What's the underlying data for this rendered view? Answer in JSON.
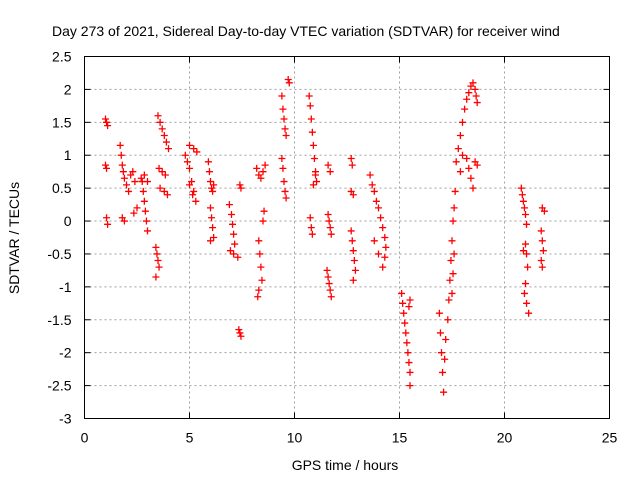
{
  "chart_data": {
    "type": "scatter",
    "title": "Day 273 of 2021, Sidereal Day-to-day VTEC variation (SDTVAR) for receiver wind",
    "xlabel": "GPS time / hours",
    "ylabel": "SDTVAR / TECUs",
    "xlim": [
      0,
      25
    ],
    "ylim": [
      -3,
      2.5
    ],
    "xticks": [
      0,
      5,
      10,
      15,
      20,
      25
    ],
    "yticks": [
      -3,
      -2.5,
      -2,
      -1.5,
      -1,
      -0.5,
      0,
      0.5,
      1,
      1.5,
      2,
      2.5
    ],
    "xtick_labels": [
      "0",
      "5",
      "10",
      "15",
      "20",
      "25"
    ],
    "ytick_labels": [
      "-3",
      "-2.5",
      "-2",
      "-1.5",
      "-1",
      "-0.5",
      "0",
      "0.5",
      "1",
      "1.5",
      "2",
      "2.5"
    ],
    "grid": true,
    "marker": "+",
    "color": "#ff0000",
    "series": [
      {
        "name": "SDTVAR",
        "points": [
          [
            1.0,
            1.55
          ],
          [
            1.05,
            1.5
          ],
          [
            1.1,
            1.45
          ],
          [
            1.0,
            0.85
          ],
          [
            1.05,
            0.8
          ],
          [
            1.05,
            0.05
          ],
          [
            1.1,
            -0.05
          ],
          [
            1.7,
            1.15
          ],
          [
            1.75,
            1.0
          ],
          [
            1.8,
            0.85
          ],
          [
            1.85,
            0.75
          ],
          [
            1.9,
            0.65
          ],
          [
            2.0,
            0.55
          ],
          [
            2.1,
            0.45
          ],
          [
            2.2,
            0.7
          ],
          [
            2.3,
            0.75
          ],
          [
            2.4,
            0.6
          ],
          [
            1.8,
            0.05
          ],
          [
            1.9,
            0.0
          ],
          [
            2.35,
            0.12
          ],
          [
            2.5,
            0.2
          ],
          [
            2.7,
            0.65
          ],
          [
            2.75,
            0.6
          ],
          [
            2.8,
            0.45
          ],
          [
            2.85,
            0.3
          ],
          [
            2.9,
            0.15
          ],
          [
            2.95,
            0.0
          ],
          [
            3.0,
            -0.15
          ],
          [
            2.85,
            0.7
          ],
          [
            3.0,
            0.6
          ],
          [
            3.4,
            -0.4
          ],
          [
            3.45,
            -0.5
          ],
          [
            3.5,
            -0.6
          ],
          [
            3.55,
            -0.7
          ],
          [
            3.4,
            -0.85
          ],
          [
            3.5,
            1.6
          ],
          [
            3.6,
            1.5
          ],
          [
            3.7,
            1.4
          ],
          [
            3.8,
            1.3
          ],
          [
            3.9,
            1.2
          ],
          [
            4.0,
            1.1
          ],
          [
            3.55,
            0.8
          ],
          [
            3.7,
            0.75
          ],
          [
            3.85,
            0.7
          ],
          [
            3.6,
            0.5
          ],
          [
            3.8,
            0.45
          ],
          [
            3.95,
            0.4
          ],
          [
            4.8,
            1.0
          ],
          [
            4.9,
            0.9
          ],
          [
            5.0,
            0.8
          ],
          [
            5.1,
            0.6
          ],
          [
            5.2,
            0.45
          ],
          [
            5.3,
            0.3
          ],
          [
            5.0,
            1.15
          ],
          [
            5.2,
            1.1
          ],
          [
            5.35,
            1.05
          ],
          [
            5.0,
            0.55
          ],
          [
            5.15,
            0.4
          ],
          [
            5.9,
            0.9
          ],
          [
            5.95,
            0.75
          ],
          [
            6.0,
            0.6
          ],
          [
            6.05,
            0.5
          ],
          [
            6.1,
            0.45
          ],
          [
            6.15,
            0.55
          ],
          [
            6.0,
            0.2
          ],
          [
            6.05,
            0.05
          ],
          [
            6.1,
            -0.1
          ],
          [
            6.15,
            -0.25
          ],
          [
            6.0,
            -0.3
          ],
          [
            6.9,
            0.25
          ],
          [
            7.0,
            0.1
          ],
          [
            7.05,
            -0.05
          ],
          [
            7.1,
            -0.2
          ],
          [
            7.15,
            -0.35
          ],
          [
            7.1,
            -0.5
          ],
          [
            7.3,
            -0.55
          ],
          [
            6.95,
            -0.45
          ],
          [
            7.35,
            -1.65
          ],
          [
            7.4,
            -1.7
          ],
          [
            7.45,
            -1.75
          ],
          [
            7.4,
            0.55
          ],
          [
            7.45,
            0.5
          ],
          [
            8.2,
            0.8
          ],
          [
            8.3,
            0.7
          ],
          [
            8.4,
            0.65
          ],
          [
            8.5,
            0.75
          ],
          [
            8.6,
            0.85
          ],
          [
            8.3,
            -0.3
          ],
          [
            8.35,
            -0.5
          ],
          [
            8.4,
            -0.7
          ],
          [
            8.45,
            -0.9
          ],
          [
            8.3,
            -1.05
          ],
          [
            8.25,
            -1.15
          ],
          [
            8.5,
            0.0
          ],
          [
            8.55,
            0.15
          ],
          [
            9.4,
            1.9
          ],
          [
            9.45,
            1.7
          ],
          [
            9.5,
            1.55
          ],
          [
            9.55,
            1.4
          ],
          [
            9.6,
            1.3
          ],
          [
            9.4,
            0.95
          ],
          [
            9.45,
            0.8
          ],
          [
            9.5,
            0.6
          ],
          [
            9.55,
            0.45
          ],
          [
            9.6,
            0.35
          ],
          [
            9.7,
            2.15
          ],
          [
            9.75,
            2.1
          ],
          [
            10.7,
            1.9
          ],
          [
            10.75,
            1.75
          ],
          [
            10.8,
            1.55
          ],
          [
            10.85,
            1.35
          ],
          [
            10.9,
            1.15
          ],
          [
            10.95,
            0.95
          ],
          [
            11.0,
            0.75
          ],
          [
            11.05,
            0.6
          ],
          [
            10.75,
            0.05
          ],
          [
            10.8,
            -0.1
          ],
          [
            10.85,
            -0.2
          ],
          [
            10.9,
            0.55
          ],
          [
            11.0,
            0.7
          ],
          [
            11.6,
            0.85
          ],
          [
            11.7,
            0.75
          ],
          [
            11.6,
            0.1
          ],
          [
            11.65,
            0.0
          ],
          [
            11.7,
            -0.1
          ],
          [
            11.75,
            -0.2
          ],
          [
            11.55,
            -0.75
          ],
          [
            11.6,
            -0.85
          ],
          [
            11.65,
            -0.95
          ],
          [
            11.7,
            -1.05
          ],
          [
            11.75,
            -1.15
          ],
          [
            12.7,
            0.95
          ],
          [
            12.75,
            0.85
          ],
          [
            12.7,
            0.45
          ],
          [
            12.8,
            0.4
          ],
          [
            12.7,
            -0.15
          ],
          [
            12.75,
            -0.3
          ],
          [
            12.8,
            -0.45
          ],
          [
            12.85,
            -0.6
          ],
          [
            12.9,
            -0.75
          ],
          [
            12.8,
            -0.9
          ],
          [
            13.6,
            0.7
          ],
          [
            13.7,
            0.55
          ],
          [
            13.8,
            0.45
          ],
          [
            13.9,
            0.3
          ],
          [
            14.0,
            0.2
          ],
          [
            14.1,
            0.05
          ],
          [
            14.2,
            -0.1
          ],
          [
            14.3,
            -0.25
          ],
          [
            14.35,
            -0.4
          ],
          [
            14.3,
            -0.55
          ],
          [
            13.8,
            -0.3
          ],
          [
            14.0,
            -0.5
          ],
          [
            14.2,
            -0.7
          ],
          [
            15.1,
            -1.1
          ],
          [
            15.15,
            -1.25
          ],
          [
            15.2,
            -1.4
          ],
          [
            15.25,
            -1.55
          ],
          [
            15.3,
            -1.7
          ],
          [
            15.35,
            -1.85
          ],
          [
            15.4,
            -2.0
          ],
          [
            15.45,
            -2.15
          ],
          [
            15.5,
            -2.3
          ],
          [
            15.5,
            -2.5
          ],
          [
            15.45,
            -1.3
          ],
          [
            15.5,
            -1.2
          ],
          [
            16.9,
            -1.4
          ],
          [
            16.95,
            -1.7
          ],
          [
            17.0,
            -2.0
          ],
          [
            17.05,
            -2.3
          ],
          [
            17.1,
            -2.6
          ],
          [
            17.15,
            -2.1
          ],
          [
            17.2,
            -1.8
          ],
          [
            17.3,
            -1.5
          ],
          [
            17.35,
            -1.2
          ],
          [
            17.4,
            -0.9
          ],
          [
            17.45,
            -0.6
          ],
          [
            17.5,
            -0.3
          ],
          [
            17.55,
            0.0
          ],
          [
            17.6,
            0.2
          ],
          [
            17.65,
            0.45
          ],
          [
            17.6,
            -0.5
          ],
          [
            17.55,
            -0.8
          ],
          [
            17.5,
            -1.1
          ],
          [
            17.7,
            0.9
          ],
          [
            17.8,
            1.1
          ],
          [
            17.9,
            1.3
          ],
          [
            18.0,
            1.5
          ],
          [
            18.1,
            1.7
          ],
          [
            18.2,
            1.85
          ],
          [
            18.3,
            1.95
          ],
          [
            18.4,
            2.05
          ],
          [
            18.5,
            2.1
          ],
          [
            18.6,
            2.0
          ],
          [
            18.65,
            1.9
          ],
          [
            18.7,
            1.8
          ],
          [
            18.2,
            0.95
          ],
          [
            18.3,
            0.8
          ],
          [
            18.4,
            0.65
          ],
          [
            18.5,
            0.5
          ],
          [
            18.6,
            0.9
          ],
          [
            18.7,
            0.85
          ],
          [
            18.0,
            1.0
          ],
          [
            17.9,
            0.75
          ],
          [
            20.8,
            0.5
          ],
          [
            20.85,
            0.4
          ],
          [
            20.9,
            0.3
          ],
          [
            20.95,
            0.2
          ],
          [
            21.0,
            0.1
          ],
          [
            21.05,
            -0.05
          ],
          [
            21.0,
            -0.35
          ],
          [
            21.05,
            -0.5
          ],
          [
            21.1,
            -0.7
          ],
          [
            21.0,
            -0.95
          ],
          [
            20.95,
            -1.1
          ],
          [
            21.05,
            -1.25
          ],
          [
            21.15,
            -1.4
          ],
          [
            20.9,
            -0.45
          ],
          [
            21.8,
            0.2
          ],
          [
            21.9,
            0.15
          ],
          [
            21.75,
            -0.15
          ],
          [
            21.8,
            -0.3
          ],
          [
            21.85,
            -0.45
          ],
          [
            21.75,
            -0.6
          ],
          [
            21.8,
            -0.7
          ]
        ]
      }
    ]
  }
}
